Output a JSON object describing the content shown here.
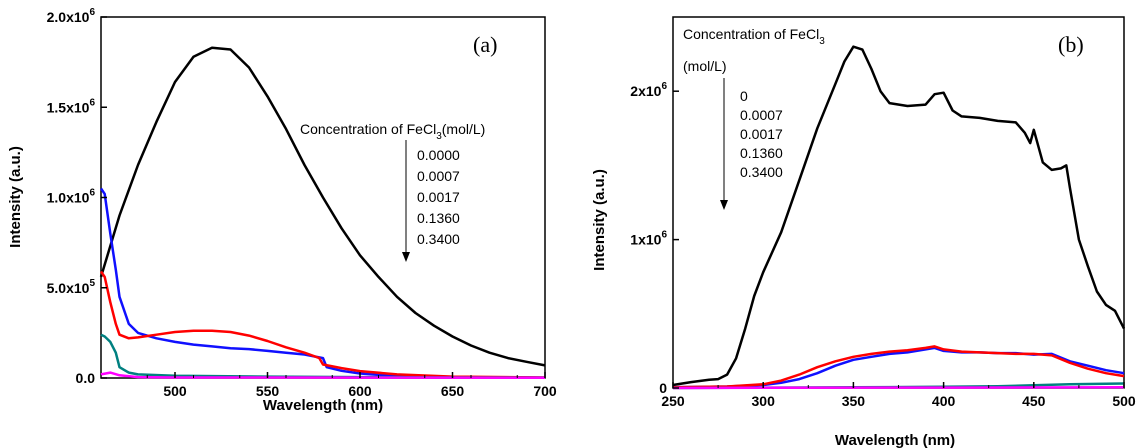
{
  "chart_data": [
    {
      "type": "line",
      "panel_label": "(a)",
      "xlabel": "Wavelength (nm)",
      "ylabel": "Intensity (a.u.)",
      "xlim": [
        460,
        700
      ],
      "ylim": [
        0,
        2000000
      ],
      "x_ticks": [
        {
          "v": 500,
          "label": "500"
        },
        {
          "v": 550,
          "label": "550"
        },
        {
          "v": 600,
          "label": "600"
        },
        {
          "v": 650,
          "label": "650"
        },
        {
          "v": 700,
          "label": "700"
        }
      ],
      "y_ticks": [
        {
          "v": 0,
          "base": "0.0",
          "exp": ""
        },
        {
          "v": 500000,
          "base": "5.0x10",
          "exp": "5"
        },
        {
          "v": 1000000,
          "base": "1.0x10",
          "exp": "6"
        },
        {
          "v": 1500000,
          "base": "1.5x10",
          "exp": "6"
        },
        {
          "v": 2000000,
          "base": "2.0x10",
          "exp": "6"
        }
      ],
      "annotation": {
        "title_pre": "Concentration of FeCl",
        "title_sub": "3",
        "title_post": "(mol/L)",
        "values": [
          "0.0000",
          "0.0007",
          "0.0017",
          "0.1360",
          "0.3400"
        ]
      },
      "series": [
        {
          "name": "0.0000",
          "color": "#000000",
          "x": [
            460,
            470,
            480,
            490,
            500,
            510,
            520,
            530,
            540,
            550,
            560,
            570,
            580,
            590,
            600,
            610,
            620,
            630,
            640,
            650,
            660,
            670,
            680,
            690,
            700
          ],
          "y": [
            560000,
            900000,
            1180000,
            1420000,
            1640000,
            1780000,
            1830000,
            1820000,
            1720000,
            1560000,
            1380000,
            1180000,
            1000000,
            830000,
            680000,
            560000,
            450000,
            360000,
            290000,
            230000,
            180000,
            140000,
            110000,
            90000,
            70000
          ]
        },
        {
          "name": "0.0007",
          "color": "#1010ff",
          "x": [
            460,
            462,
            465,
            468,
            470,
            475,
            480,
            490,
            500,
            510,
            520,
            530,
            540,
            550,
            560,
            570,
            580,
            582,
            590,
            600,
            620,
            650,
            700
          ],
          "y": [
            1050000,
            1020000,
            800000,
            600000,
            450000,
            300000,
            250000,
            220000,
            200000,
            185000,
            175000,
            165000,
            160000,
            150000,
            140000,
            130000,
            110000,
            60000,
            40000,
            25000,
            10000,
            5000,
            2000
          ]
        },
        {
          "name": "0.0017",
          "color": "#ff0000",
          "x": [
            460,
            462,
            465,
            468,
            470,
            475,
            480,
            490,
            500,
            510,
            520,
            530,
            540,
            550,
            560,
            570,
            578,
            580,
            590,
            600,
            620,
            650,
            700
          ],
          "y": [
            590000,
            560000,
            420000,
            300000,
            240000,
            220000,
            225000,
            240000,
            255000,
            262000,
            262000,
            255000,
            235000,
            205000,
            170000,
            140000,
            110000,
            75000,
            55000,
            38000,
            20000,
            8000,
            3000
          ]
        },
        {
          "name": "0.1360",
          "color": "#008080",
          "x": [
            460,
            462,
            465,
            468,
            470,
            475,
            480,
            500,
            550,
            600,
            650,
            700
          ],
          "y": [
            240000,
            230000,
            200000,
            140000,
            60000,
            30000,
            20000,
            12000,
            8000,
            5000,
            3000,
            2000
          ]
        },
        {
          "name": "0.3400",
          "color": "#ff00ff",
          "x": [
            460,
            465,
            470,
            480,
            500,
            600,
            700
          ],
          "y": [
            20000,
            30000,
            15000,
            5000,
            3000,
            2000,
            1000
          ]
        }
      ]
    },
    {
      "type": "line",
      "panel_label": "(b)",
      "xlabel": "Wavelength (nm)",
      "ylabel": "Intensity (a.u.)",
      "xlim": [
        250,
        500
      ],
      "ylim": [
        0,
        2500000
      ],
      "x_ticks": [
        {
          "v": 250,
          "label": "250"
        },
        {
          "v": 300,
          "label": "300"
        },
        {
          "v": 350,
          "label": "350"
        },
        {
          "v": 400,
          "label": "400"
        },
        {
          "v": 450,
          "label": "450"
        },
        {
          "v": 500,
          "label": "500"
        }
      ],
      "y_ticks": [
        {
          "v": 0,
          "base": "0",
          "exp": ""
        },
        {
          "v": 1000000,
          "base": "1x10",
          "exp": "6"
        },
        {
          "v": 2000000,
          "base": "2x10",
          "exp": "6"
        }
      ],
      "annotation": {
        "title_pre": "Concentration of FeCl",
        "title_sub": "3",
        "title_post": "",
        "subtitle": "(mol/L)",
        "values": [
          "0",
          "0.0007",
          "0.0017",
          "0.1360",
          "0.3400"
        ]
      },
      "series": [
        {
          "name": "0",
          "color": "#000000",
          "x": [
            250,
            260,
            270,
            275,
            280,
            285,
            290,
            295,
            300,
            310,
            320,
            330,
            340,
            345,
            350,
            355,
            360,
            365,
            370,
            380,
            390,
            395,
            400,
            405,
            410,
            420,
            430,
            440,
            445,
            448,
            450,
            455,
            460,
            465,
            468,
            470,
            475,
            480,
            485,
            490,
            495,
            500
          ],
          "y": [
            20000,
            40000,
            55000,
            60000,
            90000,
            200000,
            400000,
            620000,
            780000,
            1050000,
            1400000,
            1750000,
            2050000,
            2200000,
            2300000,
            2280000,
            2150000,
            2000000,
            1920000,
            1900000,
            1910000,
            1980000,
            1990000,
            1870000,
            1830000,
            1820000,
            1800000,
            1790000,
            1720000,
            1650000,
            1740000,
            1520000,
            1470000,
            1480000,
            1500000,
            1350000,
            1000000,
            820000,
            650000,
            560000,
            520000,
            400000
          ]
        },
        {
          "name": "0.0007",
          "color": "#1010ff",
          "x": [
            250,
            280,
            300,
            310,
            320,
            330,
            340,
            350,
            360,
            370,
            380,
            390,
            395,
            400,
            410,
            420,
            430,
            440,
            450,
            460,
            470,
            480,
            490,
            500
          ],
          "y": [
            5000,
            10000,
            20000,
            35000,
            60000,
            100000,
            150000,
            190000,
            210000,
            230000,
            240000,
            260000,
            270000,
            250000,
            240000,
            240000,
            235000,
            235000,
            225000,
            230000,
            180000,
            150000,
            120000,
            100000
          ]
        },
        {
          "name": "0.0017",
          "color": "#ff0000",
          "x": [
            250,
            280,
            300,
            310,
            320,
            330,
            340,
            350,
            360,
            370,
            380,
            390,
            395,
            400,
            410,
            420,
            430,
            440,
            450,
            460,
            470,
            480,
            490,
            500
          ],
          "y": [
            5000,
            10000,
            25000,
            50000,
            90000,
            140000,
            180000,
            210000,
            230000,
            245000,
            255000,
            270000,
            280000,
            260000,
            245000,
            240000,
            235000,
            230000,
            230000,
            220000,
            170000,
            130000,
            100000,
            80000
          ]
        },
        {
          "name": "0.1360",
          "color": "#008080",
          "x": [
            250,
            300,
            350,
            400,
            430,
            450,
            470,
            500
          ],
          "y": [
            0,
            3000,
            5000,
            8000,
            12000,
            18000,
            25000,
            30000
          ]
        },
        {
          "name": "0.3400",
          "color": "#ff00ff",
          "x": [
            250,
            300,
            400,
            500
          ],
          "y": [
            0,
            2000,
            3000,
            5000
          ]
        }
      ]
    }
  ]
}
